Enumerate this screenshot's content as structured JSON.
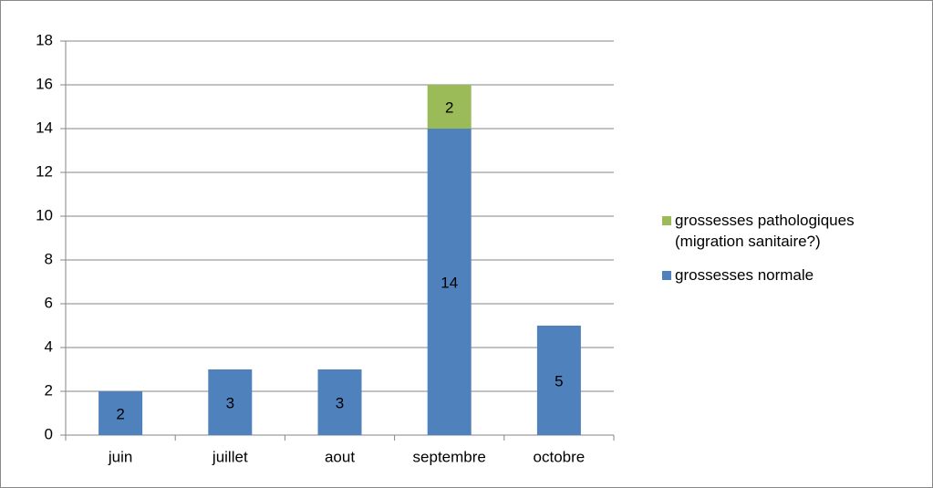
{
  "chart_data": {
    "type": "stacked_bar",
    "categories": [
      "juin",
      "juillet",
      "aout",
      "septembre",
      "octobre"
    ],
    "series": [
      {
        "name": "grossesses normale",
        "color": "#4f81bd",
        "values": [
          2,
          3,
          3,
          14,
          5
        ]
      },
      {
        "name": "grossesses pathologiques (migration sanitaire?)",
        "color": "#9bbb59",
        "values": [
          null,
          null,
          null,
          2,
          null
        ]
      }
    ],
    "ylim": [
      0,
      18
    ],
    "yticks": [
      0,
      2,
      4,
      6,
      8,
      10,
      12,
      14,
      16,
      18
    ],
    "grid": true,
    "legend": "right"
  }
}
